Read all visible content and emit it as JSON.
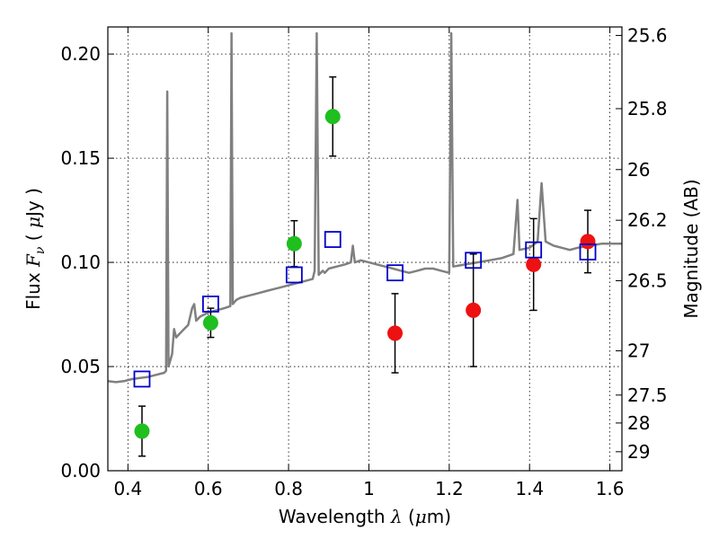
{
  "chart_data": {
    "type": "scatter",
    "xlabel": "Wavelength  λ (μm)",
    "ylabel": "Flux  Fν  ( μJy )",
    "y2label": "Magnitude (AB)",
    "xlim": [
      0.35,
      1.63
    ],
    "ylim": [
      0.0,
      0.213
    ],
    "grid": true,
    "x_ticks": [
      "0.4",
      "0.6",
      "0.8",
      "1",
      "1.2",
      "1.4",
      "1.6"
    ],
    "y_ticks": [
      "0.00",
      "0.05",
      "0.10",
      "0.15",
      "0.20"
    ],
    "mag_ticks": [
      "25.6",
      "25.8",
      "26",
      "26.2",
      "26.5",
      "27",
      "27.5",
      "28",
      "29"
    ],
    "colors": {
      "spectrum": "#808080",
      "green_points": "#1fbf1f",
      "red_points": "#ee1111",
      "model_squares": "#0000cc"
    },
    "spectrum": [
      [
        0.35,
        0.043
      ],
      [
        0.37,
        0.0425
      ],
      [
        0.39,
        0.043
      ],
      [
        0.41,
        0.044
      ],
      [
        0.43,
        0.0445
      ],
      [
        0.45,
        0.045
      ],
      [
        0.47,
        0.046
      ],
      [
        0.49,
        0.047
      ],
      [
        0.495,
        0.048
      ],
      [
        0.498,
        0.182
      ],
      [
        0.501,
        0.05
      ],
      [
        0.51,
        0.056
      ],
      [
        0.515,
        0.068
      ],
      [
        0.52,
        0.064
      ],
      [
        0.53,
        0.066
      ],
      [
        0.54,
        0.068
      ],
      [
        0.55,
        0.07
      ],
      [
        0.56,
        0.078
      ],
      [
        0.565,
        0.08
      ],
      [
        0.57,
        0.072
      ],
      [
        0.58,
        0.074
      ],
      [
        0.59,
        0.075
      ],
      [
        0.6,
        0.076
      ],
      [
        0.62,
        0.077
      ],
      [
        0.64,
        0.078
      ],
      [
        0.655,
        0.079
      ],
      [
        0.658,
        0.21
      ],
      [
        0.661,
        0.08
      ],
      [
        0.67,
        0.082
      ],
      [
        0.68,
        0.083
      ],
      [
        0.7,
        0.084
      ],
      [
        0.72,
        0.085
      ],
      [
        0.74,
        0.086
      ],
      [
        0.76,
        0.087
      ],
      [
        0.78,
        0.088
      ],
      [
        0.8,
        0.089
      ],
      [
        0.82,
        0.09
      ],
      [
        0.84,
        0.091
      ],
      [
        0.86,
        0.092
      ],
      [
        0.865,
        0.096
      ],
      [
        0.87,
        0.21
      ],
      [
        0.875,
        0.094
      ],
      [
        0.885,
        0.096
      ],
      [
        0.89,
        0.095
      ],
      [
        0.9,
        0.097
      ],
      [
        0.92,
        0.098
      ],
      [
        0.94,
        0.099
      ],
      [
        0.955,
        0.1
      ],
      [
        0.96,
        0.108
      ],
      [
        0.965,
        0.1
      ],
      [
        0.98,
        0.101
      ],
      [
        1.0,
        0.1
      ],
      [
        1.02,
        0.099
      ],
      [
        1.04,
        0.098
      ],
      [
        1.06,
        0.097
      ],
      [
        1.08,
        0.096
      ],
      [
        1.1,
        0.095
      ],
      [
        1.12,
        0.096
      ],
      [
        1.14,
        0.097
      ],
      [
        1.16,
        0.097
      ],
      [
        1.18,
        0.096
      ],
      [
        1.2,
        0.095
      ],
      [
        1.205,
        0.21
      ],
      [
        1.21,
        0.098
      ],
      [
        1.24,
        0.099
      ],
      [
        1.27,
        0.1
      ],
      [
        1.3,
        0.101
      ],
      [
        1.33,
        0.102
      ],
      [
        1.36,
        0.104
      ],
      [
        1.37,
        0.13
      ],
      [
        1.375,
        0.106
      ],
      [
        1.4,
        0.107
      ],
      [
        1.42,
        0.11
      ],
      [
        1.43,
        0.138
      ],
      [
        1.44,
        0.11
      ],
      [
        1.46,
        0.108
      ],
      [
        1.48,
        0.107
      ],
      [
        1.5,
        0.106
      ],
      [
        1.52,
        0.107
      ],
      [
        1.55,
        0.108
      ],
      [
        1.58,
        0.109
      ],
      [
        1.61,
        0.109
      ],
      [
        1.63,
        0.109
      ]
    ],
    "green_points": [
      {
        "x": 0.435,
        "y": 0.019,
        "err": 0.012
      },
      {
        "x": 0.606,
        "y": 0.071,
        "err": 0.007
      },
      {
        "x": 0.814,
        "y": 0.109,
        "err": 0.011
      },
      {
        "x": 0.91,
        "y": 0.17,
        "err": 0.019
      }
    ],
    "red_points": [
      {
        "x": 1.065,
        "y": 0.066,
        "err": 0.019
      },
      {
        "x": 1.26,
        "y": 0.077,
        "err": 0.027
      },
      {
        "x": 1.41,
        "y": 0.099,
        "err": 0.022
      },
      {
        "x": 1.545,
        "y": 0.11,
        "err": 0.015
      }
    ],
    "model_squares": [
      {
        "x": 0.435,
        "y": 0.044
      },
      {
        "x": 0.606,
        "y": 0.08
      },
      {
        "x": 0.814,
        "y": 0.094
      },
      {
        "x": 0.91,
        "y": 0.111
      },
      {
        "x": 1.065,
        "y": 0.095
      },
      {
        "x": 1.26,
        "y": 0.101
      },
      {
        "x": 1.41,
        "y": 0.106
      },
      {
        "x": 1.545,
        "y": 0.105
      }
    ]
  }
}
